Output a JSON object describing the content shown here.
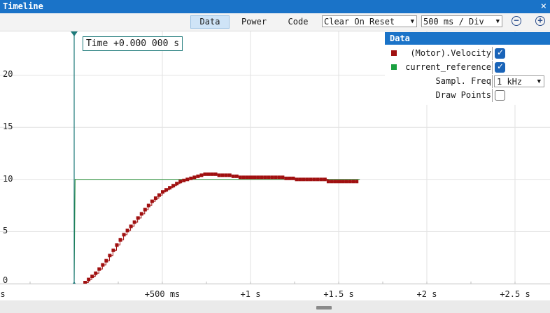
{
  "window": {
    "title": "Timeline",
    "close_glyph": "×"
  },
  "toolbar": {
    "tabs": [
      {
        "label": "Data",
        "active": true
      },
      {
        "label": "Power",
        "active": false
      },
      {
        "label": "Code",
        "active": false
      }
    ],
    "reset_mode": "Clear On Reset",
    "time_scale": "500 ms / Div",
    "zoom_out_icon": "zoom-out-icon",
    "zoom_in_icon": "zoom-in-icon",
    "dropdown_arrow": "▼"
  },
  "cursor": {
    "label": "Time +0.000 000 s"
  },
  "legend": {
    "header": "Data",
    "series": [
      {
        "name": "(Motor).Velocity",
        "color": "#a01010",
        "checked": true
      },
      {
        "name": "current_reference",
        "color": "#1aa040",
        "checked": true
      }
    ],
    "sampl_freq_label": "Sampl. Freq",
    "sampl_freq_value": "1 kHz",
    "draw_points_label": "Draw Points",
    "draw_points_checked": false
  },
  "scrollbar": {
    "thumb_icon": "scroll-thumb"
  },
  "chart_data": {
    "type": "line",
    "y_ticks": [
      "20",
      "15",
      "10",
      "5",
      "0"
    ],
    "x_ticks": [
      "s",
      "+500 ms",
      "+1 s",
      "+1.5 s",
      "+2 s",
      "+2.5 s"
    ],
    "ylim": [
      0,
      23.5
    ],
    "x_unit": "s",
    "cursor_time": 0,
    "series": [
      {
        "name": "current_reference",
        "color": "#1e8a2e",
        "points": [
          [
            0.0,
            0
          ],
          [
            0.005,
            10
          ],
          [
            1.62,
            10
          ]
        ]
      },
      {
        "name": "(Motor).Velocity",
        "color": "#a01010",
        "points": [
          [
            0.06,
            0.1
          ],
          [
            0.08,
            0.4
          ],
          [
            0.1,
            0.7
          ],
          [
            0.12,
            1.0
          ],
          [
            0.14,
            1.4
          ],
          [
            0.16,
            1.8
          ],
          [
            0.18,
            2.2
          ],
          [
            0.2,
            2.7
          ],
          [
            0.22,
            3.2
          ],
          [
            0.24,
            3.7
          ],
          [
            0.26,
            4.2
          ],
          [
            0.28,
            4.7
          ],
          [
            0.3,
            5.1
          ],
          [
            0.32,
            5.5
          ],
          [
            0.34,
            5.9
          ],
          [
            0.36,
            6.3
          ],
          [
            0.38,
            6.7
          ],
          [
            0.4,
            7.1
          ],
          [
            0.42,
            7.5
          ],
          [
            0.44,
            7.9
          ],
          [
            0.46,
            8.2
          ],
          [
            0.48,
            8.5
          ],
          [
            0.5,
            8.8
          ],
          [
            0.52,
            9.0
          ],
          [
            0.54,
            9.2
          ],
          [
            0.56,
            9.4
          ],
          [
            0.58,
            9.6
          ],
          [
            0.6,
            9.8
          ],
          [
            0.62,
            9.9
          ],
          [
            0.64,
            10.0
          ],
          [
            0.66,
            10.1
          ],
          [
            0.68,
            10.2
          ],
          [
            0.7,
            10.3
          ],
          [
            0.72,
            10.4
          ],
          [
            0.74,
            10.5
          ],
          [
            0.76,
            10.5
          ],
          [
            0.78,
            10.5
          ],
          [
            0.8,
            10.5
          ],
          [
            0.82,
            10.4
          ],
          [
            0.84,
            10.4
          ],
          [
            0.86,
            10.4
          ],
          [
            0.88,
            10.4
          ],
          [
            0.9,
            10.3
          ],
          [
            0.92,
            10.3
          ],
          [
            0.94,
            10.2
          ],
          [
            0.96,
            10.2
          ],
          [
            0.98,
            10.2
          ],
          [
            1.0,
            10.2
          ],
          [
            1.02,
            10.2
          ],
          [
            1.04,
            10.2
          ],
          [
            1.06,
            10.2
          ],
          [
            1.08,
            10.2
          ],
          [
            1.1,
            10.2
          ],
          [
            1.12,
            10.2
          ],
          [
            1.14,
            10.2
          ],
          [
            1.16,
            10.2
          ],
          [
            1.18,
            10.2
          ],
          [
            1.2,
            10.1
          ],
          [
            1.22,
            10.1
          ],
          [
            1.24,
            10.1
          ],
          [
            1.26,
            10.0
          ],
          [
            1.28,
            10.0
          ],
          [
            1.3,
            10.0
          ],
          [
            1.32,
            10.0
          ],
          [
            1.34,
            10.0
          ],
          [
            1.36,
            10.0
          ],
          [
            1.38,
            10.0
          ],
          [
            1.4,
            10.0
          ],
          [
            1.42,
            10.0
          ],
          [
            1.44,
            9.8
          ],
          [
            1.46,
            9.8
          ],
          [
            1.48,
            9.8
          ],
          [
            1.5,
            9.8
          ],
          [
            1.52,
            9.8
          ],
          [
            1.54,
            9.8
          ],
          [
            1.56,
            9.8
          ],
          [
            1.58,
            9.8
          ],
          [
            1.6,
            9.8
          ]
        ]
      }
    ]
  }
}
